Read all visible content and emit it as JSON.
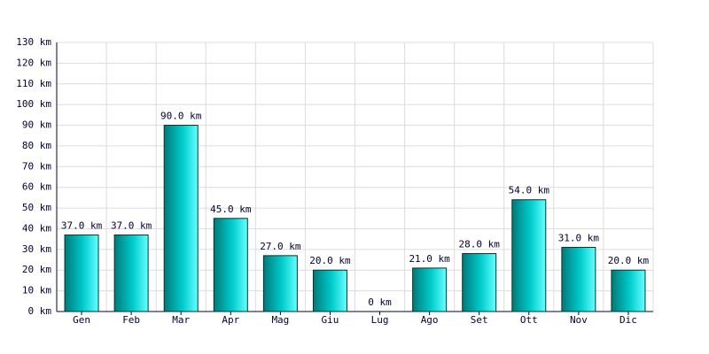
{
  "chart_data": {
    "type": "bar",
    "categories": [
      "Gen",
      "Feb",
      "Mar",
      "Apr",
      "Mag",
      "Giu",
      "Lug",
      "Ago",
      "Set",
      "Ott",
      "Nov",
      "Dic"
    ],
    "values": [
      37,
      37,
      90,
      45,
      27,
      20,
      0,
      21,
      28,
      54,
      31,
      20
    ],
    "value_labels": [
      "37.0 km",
      "37.0 km",
      "90.0 km",
      "45.0 km",
      "27.0 km",
      "20.0 km",
      "0 km",
      "21.0 km",
      "28.0 km",
      "54.0 km",
      "31.0 km",
      "20.0 km"
    ],
    "color": "#00cccc",
    "ylim": [
      0,
      130
    ],
    "yticks": [
      {
        "value": 0,
        "label": "0 km"
      },
      {
        "value": 10,
        "label": "10 km"
      },
      {
        "value": 20,
        "label": "20 km"
      },
      {
        "value": 30,
        "label": "30 km"
      },
      {
        "value": 40,
        "label": "40 km"
      },
      {
        "value": 50,
        "label": "50 km"
      },
      {
        "value": 60,
        "label": "60 km"
      },
      {
        "value": 70,
        "label": "70 km"
      },
      {
        "value": 80,
        "label": "80 km"
      },
      {
        "value": 90,
        "label": "90 km"
      },
      {
        "value": 100,
        "label": "100 km"
      },
      {
        "value": 110,
        "label": "110 km"
      },
      {
        "value": 120,
        "label": "120 km"
      },
      {
        "value": 130,
        "label": "130 km"
      }
    ],
    "grid": true
  }
}
